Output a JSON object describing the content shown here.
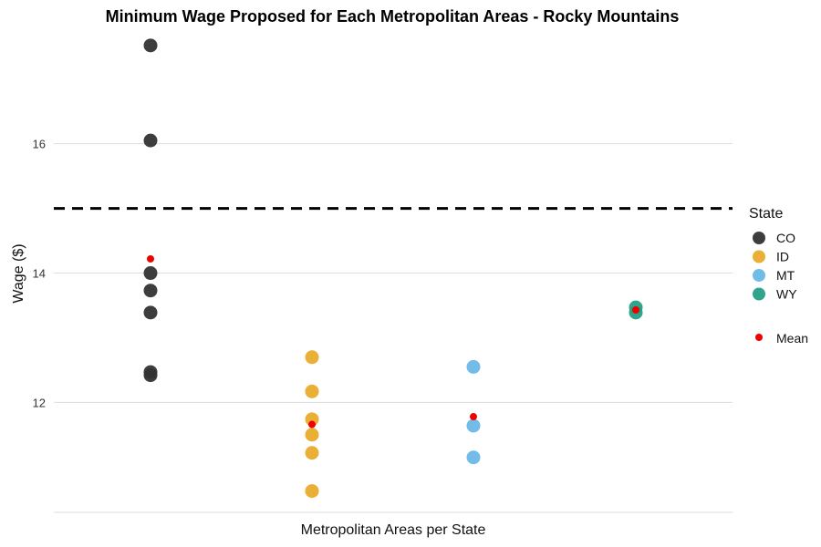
{
  "chart_data": {
    "type": "scatter",
    "title": "Minimum Wage Proposed for Each Metropolitan Areas - Rocky Mountains",
    "xlabel": "Metropolitan Areas per State",
    "ylabel": "Wage ($)",
    "ylim": [
      10.3,
      17.8
    ],
    "yticks": [
      12,
      14,
      16
    ],
    "grid": "horizontal",
    "reference_line": {
      "y": 15,
      "style": "dashed"
    },
    "legend": {
      "title": "State",
      "placement": "right"
    },
    "mean_label": "Mean",
    "mean_color": "#ee0000",
    "series": [
      {
        "name": "CO",
        "color": "#333333",
        "values": [
          17.52,
          16.05,
          14.0,
          13.73,
          13.39,
          12.47,
          12.42
        ],
        "mean": 14.22
      },
      {
        "name": "ID",
        "color": "#e9ab2a",
        "values": [
          12.7,
          12.17,
          11.74,
          11.5,
          11.22,
          10.63
        ],
        "mean": 11.66
      },
      {
        "name": "MT",
        "color": "#6cb8e8",
        "values": [
          12.55,
          11.64,
          11.15
        ],
        "mean": 11.78
      },
      {
        "name": "WY",
        "color": "#26a085",
        "values": [
          13.47,
          13.39
        ],
        "mean": 13.43
      }
    ]
  }
}
